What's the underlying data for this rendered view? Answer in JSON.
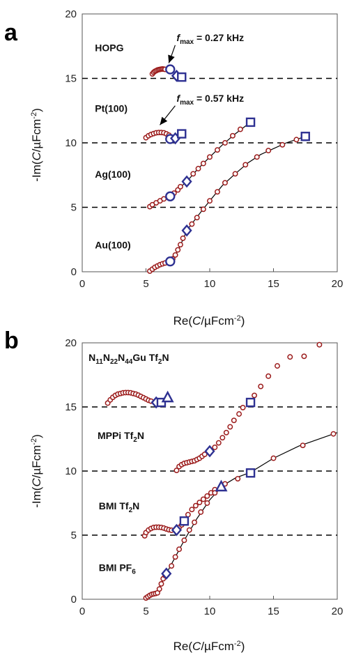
{
  "chart_data": [
    {
      "panel": "a",
      "type": "scatter",
      "xlabel": "Re(C/µFcm⁻²)",
      "ylabel": "-Im(C/µFcm⁻²)",
      "xlim": [
        0,
        20
      ],
      "ylim": [
        0,
        20
      ],
      "xticks": [
        0,
        5,
        10,
        15,
        20
      ],
      "yticks": [
        0,
        5,
        10,
        15,
        20
      ],
      "dashed_lines_y": [
        5,
        10,
        15
      ],
      "colors": {
        "points": "#9b1b1b",
        "markers": "#2e3192",
        "fit": "#000000"
      },
      "series_labels": [
        {
          "text": "HOPG",
          "x": 1,
          "y": 17.1
        },
        {
          "text": "Pt(100)",
          "x": 1,
          "y": 12.4
        },
        {
          "text": "Ag(100)",
          "x": 1,
          "y": 7.3
        },
        {
          "text": "Au(100)",
          "x": 1,
          "y": 1.8
        }
      ],
      "annotations": [
        {
          "text": "= 0.27 kHz",
          "at": [
            6.9,
            15.7
          ],
          "label_at": [
            7.4,
            17.9
          ]
        },
        {
          "text": "= 0.57 kHz",
          "at": [
            6.2,
            10.9
          ],
          "label_at": [
            7.4,
            13.2
          ]
        }
      ],
      "series": [
        {
          "name": "HOPG",
          "points": [
            [
              5.5,
              15.35
            ],
            [
              5.6,
              15.47
            ],
            [
              5.7,
              15.55
            ],
            [
              5.8,
              15.6
            ],
            [
              5.9,
              15.65
            ],
            [
              6.0,
              15.68
            ],
            [
              6.1,
              15.7
            ],
            [
              6.2,
              15.72
            ],
            [
              6.3,
              15.73
            ],
            [
              6.4,
              15.72
            ],
            [
              6.5,
              15.7
            ]
          ],
          "circle": [
            6.9,
            15.7
          ],
          "diamond": [
            7.4,
            15.2
          ],
          "square": [
            7.8,
            15.1
          ]
        },
        {
          "name": "Pt(100)",
          "points": [
            [
              5.0,
              10.4
            ],
            [
              5.2,
              10.55
            ],
            [
              5.4,
              10.65
            ],
            [
              5.6,
              10.72
            ],
            [
              5.8,
              10.78
            ],
            [
              6.0,
              10.8
            ],
            [
              6.2,
              10.8
            ],
            [
              6.4,
              10.78
            ],
            [
              6.6,
              10.7
            ],
            [
              6.8,
              10.6
            ]
          ],
          "circle": [
            6.9,
            10.3
          ],
          "diamond": [
            7.3,
            10.35
          ],
          "square": [
            7.8,
            10.7
          ]
        },
        {
          "name": "Ag(100)",
          "points": [
            [
              5.3,
              5.05
            ],
            [
              5.5,
              5.2
            ],
            [
              5.8,
              5.35
            ],
            [
              6.1,
              5.5
            ],
            [
              6.4,
              5.65
            ],
            [
              7.2,
              6.1
            ],
            [
              7.5,
              6.35
            ],
            [
              7.7,
              6.6
            ],
            [
              8.7,
              7.6
            ],
            [
              9.1,
              8.0
            ],
            [
              9.5,
              8.4
            ],
            [
              10.0,
              8.9
            ],
            [
              10.6,
              9.45
            ],
            [
              11.2,
              10.0
            ],
            [
              11.8,
              10.55
            ],
            [
              12.4,
              11.05
            ]
          ],
          "fit": [
            [
              5.3,
              5.05
            ],
            [
              6.0,
              5.45
            ],
            [
              6.9,
              5.85
            ],
            [
              7.5,
              6.4
            ],
            [
              8.2,
              7.0
            ],
            [
              9.0,
              7.9
            ],
            [
              10.0,
              8.9
            ],
            [
              11.0,
              9.85
            ],
            [
              12.0,
              10.7
            ],
            [
              13.2,
              11.6
            ]
          ],
          "circle": [
            6.9,
            5.85
          ],
          "diamond": [
            8.2,
            7.0
          ],
          "square": [
            13.2,
            11.6
          ]
        },
        {
          "name": "Au(100)",
          "points": [
            [
              5.3,
              0.05
            ],
            [
              5.5,
              0.2
            ],
            [
              5.7,
              0.35
            ],
            [
              5.9,
              0.45
            ],
            [
              6.1,
              0.55
            ],
            [
              6.3,
              0.62
            ],
            [
              6.5,
              0.68
            ],
            [
              7.1,
              1.0
            ],
            [
              7.3,
              1.3
            ],
            [
              7.5,
              1.7
            ],
            [
              7.7,
              2.1
            ],
            [
              7.9,
              2.6
            ],
            [
              8.6,
              3.7
            ],
            [
              9.0,
              4.2
            ],
            [
              9.5,
              4.85
            ],
            [
              10.0,
              5.5
            ],
            [
              10.6,
              6.2
            ],
            [
              11.2,
              6.9
            ],
            [
              12.0,
              7.6
            ],
            [
              12.8,
              8.3
            ],
            [
              13.7,
              8.9
            ],
            [
              14.6,
              9.4
            ],
            [
              15.7,
              9.85
            ],
            [
              16.8,
              10.25
            ]
          ],
          "fit": [
            [
              5.3,
              0.05
            ],
            [
              6.0,
              0.5
            ],
            [
              6.9,
              0.8
            ],
            [
              7.5,
              1.6
            ],
            [
              8.2,
              3.2
            ],
            [
              9.0,
              4.25
            ],
            [
              10.0,
              5.5
            ],
            [
              11.0,
              6.7
            ],
            [
              12.0,
              7.6
            ],
            [
              13.0,
              8.45
            ],
            [
              14.0,
              9.1
            ],
            [
              15.0,
              9.55
            ],
            [
              16.0,
              10.0
            ],
            [
              17.5,
              10.5
            ]
          ],
          "circle": [
            6.9,
            0.8
          ],
          "diamond": [
            8.2,
            3.2
          ],
          "square": [
            17.5,
            10.5
          ]
        }
      ]
    },
    {
      "panel": "b",
      "type": "scatter",
      "xlabel": "Re(C/µFcm⁻²)",
      "ylabel": "-Im(C/µFcm⁻²)",
      "xlim": [
        0,
        20
      ],
      "ylim": [
        0,
        20
      ],
      "xticks": [
        0,
        5,
        10,
        15,
        20
      ],
      "yticks": [
        0,
        5,
        10,
        15,
        20
      ],
      "dashed_lines_y": [
        5,
        10,
        15
      ],
      "colors": {
        "points": "#9b1b1b",
        "markers": "#2e3192",
        "fit": "#000000"
      },
      "series_labels": [
        {
          "text": "N11N22N44Gu Tf2N",
          "x": 0.5,
          "y": 18.6
        },
        {
          "text": "MPPi Tf2N",
          "x": 1.2,
          "y": 12.5
        },
        {
          "text": "BMI Tf2N",
          "x": 1.3,
          "y": 7.0
        },
        {
          "text": "BMI PF6",
          "x": 1.3,
          "y": 2.2
        }
      ],
      "series": [
        {
          "name": "N11N22N44Gu Tf2N",
          "points": [
            [
              2.0,
              15.3
            ],
            [
              2.2,
              15.55
            ],
            [
              2.4,
              15.75
            ],
            [
              2.6,
              15.9
            ],
            [
              2.8,
              16.0
            ],
            [
              3.0,
              16.05
            ],
            [
              3.2,
              16.1
            ],
            [
              3.4,
              16.12
            ],
            [
              3.6,
              16.12
            ],
            [
              3.8,
              16.1
            ],
            [
              4.0,
              16.05
            ],
            [
              4.2,
              16.0
            ],
            [
              4.4,
              15.92
            ],
            [
              4.6,
              15.82
            ],
            [
              4.8,
              15.72
            ],
            [
              5.0,
              15.62
            ],
            [
              5.2,
              15.52
            ],
            [
              5.4,
              15.45
            ]
          ],
          "diamond": [
            5.8,
            15.35
          ],
          "square": [
            6.2,
            15.35
          ],
          "triangle": [
            6.7,
            15.7
          ]
        },
        {
          "name": "MPPi Tf2N",
          "points": [
            [
              7.4,
              10.05
            ],
            [
              7.6,
              10.35
            ],
            [
              7.8,
              10.5
            ],
            [
              8.0,
              10.6
            ],
            [
              8.2,
              10.65
            ],
            [
              8.4,
              10.7
            ],
            [
              8.6,
              10.75
            ],
            [
              8.8,
              10.8
            ],
            [
              9.0,
              10.9
            ],
            [
              9.2,
              11.0
            ],
            [
              9.4,
              11.15
            ],
            [
              9.6,
              11.3
            ],
            [
              10.4,
              11.85
            ],
            [
              10.7,
              12.2
            ],
            [
              11.0,
              12.6
            ],
            [
              11.3,
              13.0
            ],
            [
              11.6,
              13.45
            ],
            [
              11.9,
              13.95
            ],
            [
              12.3,
              14.45
            ],
            [
              12.6,
              14.95
            ],
            [
              13.5,
              15.9
            ],
            [
              14.0,
              16.6
            ],
            [
              14.6,
              17.4
            ],
            [
              15.3,
              18.2
            ],
            [
              16.3,
              18.9
            ],
            [
              17.4,
              18.95
            ],
            [
              18.6,
              19.85
            ]
          ],
          "diamond": [
            10.0,
            11.55
          ],
          "square": [
            13.2,
            15.35
          ]
        },
        {
          "name": "BMI Tf2N",
          "points": [
            [
              4.9,
              4.95
            ],
            [
              5.0,
              5.2
            ],
            [
              5.2,
              5.4
            ],
            [
              5.4,
              5.52
            ],
            [
              5.6,
              5.6
            ],
            [
              5.8,
              5.62
            ],
            [
              6.0,
              5.62
            ],
            [
              6.2,
              5.6
            ],
            [
              6.4,
              5.55
            ],
            [
              6.6,
              5.48
            ],
            [
              6.8,
              5.42
            ],
            [
              7.0,
              5.38
            ],
            [
              7.6,
              5.6
            ],
            [
              7.8,
              5.8
            ],
            [
              8.3,
              6.6
            ],
            [
              8.6,
              7.0
            ],
            [
              8.9,
              7.3
            ],
            [
              9.2,
              7.55
            ],
            [
              9.5,
              7.8
            ],
            [
              9.8,
              8.05
            ],
            [
              10.1,
              8.3
            ],
            [
              10.4,
              8.55
            ]
          ],
          "diamond": [
            7.4,
            5.4
          ],
          "square": [
            8.0,
            6.1
          ],
          "triangle": [
            10.9,
            8.75
          ]
        },
        {
          "name": "BMI PF6",
          "points": [
            [
              5.0,
              0.1
            ],
            [
              5.15,
              0.2
            ],
            [
              5.3,
              0.3
            ],
            [
              5.45,
              0.38
            ],
            [
              5.6,
              0.42
            ],
            [
              5.75,
              0.45
            ],
            [
              5.9,
              0.5
            ],
            [
              6.05,
              0.8
            ],
            [
              6.2,
              1.2
            ],
            [
              6.35,
              1.6
            ],
            [
              6.5,
              1.85
            ],
            [
              7.0,
              2.6
            ],
            [
              7.3,
              3.3
            ],
            [
              7.6,
              3.9
            ],
            [
              8.0,
              4.6
            ],
            [
              8.4,
              5.4
            ],
            [
              8.8,
              6.0
            ],
            [
              9.3,
              6.8
            ],
            [
              9.8,
              7.5
            ],
            [
              10.4,
              8.3
            ],
            [
              11.2,
              9.0
            ],
            [
              12.2,
              9.4
            ],
            [
              13.2,
              9.9
            ],
            [
              15.0,
              11.0
            ],
            [
              17.3,
              12.0
            ],
            [
              19.7,
              12.9
            ]
          ],
          "fit": [
            [
              5.0,
              0.1
            ],
            [
              5.8,
              0.45
            ],
            [
              6.3,
              1.4
            ],
            [
              6.6,
              2.0
            ],
            [
              7.3,
              3.3
            ],
            [
              8.0,
              4.6
            ],
            [
              9.0,
              6.3
            ],
            [
              10.0,
              7.75
            ],
            [
              11.0,
              8.85
            ],
            [
              12.0,
              9.45
            ],
            [
              13.2,
              9.9
            ],
            [
              15.0,
              11.0
            ],
            [
              17.0,
              11.95
            ],
            [
              20.0,
              13.0
            ]
          ],
          "diamond": [
            6.6,
            2.0
          ],
          "square": [
            13.2,
            9.85
          ]
        }
      ]
    }
  ]
}
